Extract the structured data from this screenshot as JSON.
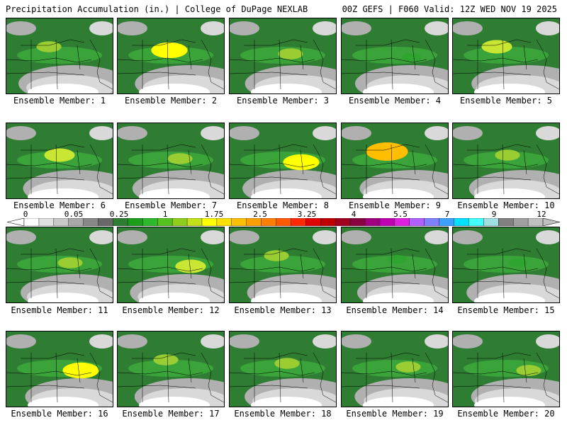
{
  "header": {
    "left_title": "Precipitation Accumulation (in.) | College of DuPage NEXLAB",
    "right_title": "00Z GEFS | F060 Valid: 12Z WED NOV 19 2025"
  },
  "panels": [
    {
      "label": "Ensemble Member: 1",
      "max_in": 1.0,
      "max_color": "#9acd32"
    },
    {
      "label": "Ensemble Member: 2",
      "max_in": 2.0,
      "max_color": "#ffff00"
    },
    {
      "label": "Ensemble Member: 3",
      "max_in": 1.0,
      "max_color": "#9acd32"
    },
    {
      "label": "Ensemble Member: 4",
      "max_in": 0.5,
      "max_color": "#2ea52e"
    },
    {
      "label": "Ensemble Member: 5",
      "max_in": 1.5,
      "max_color": "#c8e632"
    },
    {
      "label": "Ensemble Member: 6",
      "max_in": 1.5,
      "max_color": "#c8e632"
    },
    {
      "label": "Ensemble Member: 7",
      "max_in": 1.0,
      "max_color": "#9acd32"
    },
    {
      "label": "Ensemble Member: 8",
      "max_in": 2.0,
      "max_color": "#ffff00"
    },
    {
      "label": "Ensemble Member: 9",
      "max_in": 2.5,
      "max_color": "#ffbf00"
    },
    {
      "label": "Ensemble Member: 10",
      "max_in": 1.0,
      "max_color": "#9acd32"
    },
    {
      "label": "Ensemble Member: 11",
      "max_in": 1.0,
      "max_color": "#9acd32"
    },
    {
      "label": "Ensemble Member: 12",
      "max_in": 1.5,
      "max_color": "#c8e632"
    },
    {
      "label": "Ensemble Member: 13",
      "max_in": 1.0,
      "max_color": "#9acd32"
    },
    {
      "label": "Ensemble Member: 14",
      "max_in": 0.5,
      "max_color": "#2ea52e"
    },
    {
      "label": "Ensemble Member: 15",
      "max_in": 0.5,
      "max_color": "#2ea52e"
    },
    {
      "label": "Ensemble Member: 16",
      "max_in": 2.0,
      "max_color": "#ffff00"
    },
    {
      "label": "Ensemble Member: 17",
      "max_in": 1.0,
      "max_color": "#9acd32"
    },
    {
      "label": "Ensemble Member: 18",
      "max_in": 1.0,
      "max_color": "#9acd32"
    },
    {
      "label": "Ensemble Member: 19",
      "max_in": 1.0,
      "max_color": "#9acd32"
    },
    {
      "label": "Ensemble Member: 20",
      "max_in": 1.0,
      "max_color": "#9acd32"
    }
  ],
  "colorbar": {
    "labels": [
      "0",
      "0.05",
      "0.25",
      "1",
      "1.75",
      "2.5",
      "3.25",
      "4",
      "5.5",
      "7",
      "9",
      "12"
    ],
    "colors": [
      "#ffffff",
      "#e0e0e0",
      "#c8c8c8",
      "#a8a8a8",
      "#888888",
      "#686868",
      "#2e7d32",
      "#1b9e1b",
      "#2eb82e",
      "#55c21f",
      "#8fce1c",
      "#c4e01a",
      "#ffff00",
      "#ffe000",
      "#ffc000",
      "#ffa000",
      "#ff8000",
      "#ff5a00",
      "#ff2a00",
      "#e00000",
      "#c00000",
      "#a00020",
      "#880040",
      "#a00080",
      "#c000b0",
      "#e020e0",
      "#b060ff",
      "#8080ff",
      "#40a0ff",
      "#00e0ff",
      "#40ffff",
      "#a0e0e0",
      "#808080",
      "#a0a0a0",
      "#c0c0c0"
    ]
  },
  "map_colors": {
    "low": "#ffffff",
    "light_gray": "#d9d9d9",
    "gray": "#b0b0b0",
    "dark_green": "#2e7d32",
    "green": "#3aa33a"
  }
}
